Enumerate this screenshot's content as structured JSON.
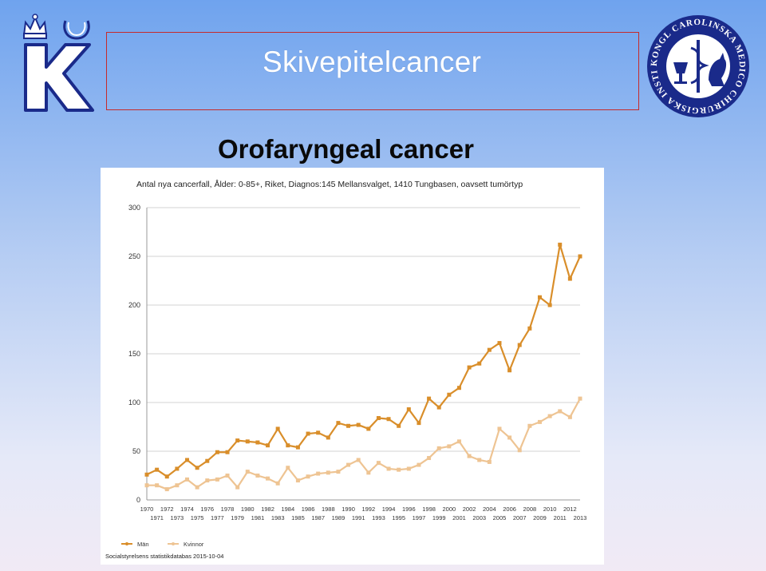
{
  "slide": {
    "title": "Skivepitelcancer",
    "subtitle": "Orofaryngeal cancer"
  },
  "colors": {
    "men": "#d98e2a",
    "women": "#eec493",
    "title_border": "#c62a2a",
    "logo_blue": "#1a2a8a"
  },
  "logos": {
    "left": "ki-crown-k-logo",
    "right_seal_text": "KONGL CAROLINSKA MEDICO CHIRURGISKA INSTITUTET"
  },
  "chart_data": {
    "type": "line",
    "title": "Antal nya cancerfall, Ålder: 0-85+, Riket, Diagnos:145 Mellansvalget, 1410 Tungbasen, oavsett tumörtyp",
    "xlabel": "",
    "ylabel": "",
    "ylim": [
      0,
      300
    ],
    "yticks": [
      "0",
      "50",
      "100",
      "150",
      "200",
      "250",
      "300"
    ],
    "xticks_top": [
      "1970",
      "1972",
      "1974",
      "1976",
      "1978",
      "1980",
      "1982",
      "1984",
      "1986",
      "1988",
      "1990",
      "1992",
      "1994",
      "1996",
      "1998",
      "2000",
      "2002",
      "2004",
      "2006",
      "2008",
      "2010",
      "2012"
    ],
    "xticks_bottom": [
      "1971",
      "1973",
      "1975",
      "1977",
      "1979",
      "1981",
      "1983",
      "1985",
      "1987",
      "1989",
      "1991",
      "1993",
      "1995",
      "1997",
      "1999",
      "2001",
      "2003",
      "2005",
      "2007",
      "2009",
      "2011",
      "2013"
    ],
    "grid": true,
    "legend_position": "bottom-left",
    "x": [
      1970,
      1971,
      1972,
      1973,
      1974,
      1975,
      1976,
      1977,
      1978,
      1979,
      1980,
      1981,
      1982,
      1983,
      1984,
      1985,
      1986,
      1987,
      1988,
      1989,
      1990,
      1991,
      1992,
      1993,
      1994,
      1995,
      1996,
      1997,
      1998,
      1999,
      2000,
      2001,
      2002,
      2003,
      2004,
      2005,
      2006,
      2007,
      2008,
      2009,
      2010,
      2011,
      2012,
      2013
    ],
    "series": [
      {
        "name": "Män",
        "values": [
          26,
          31,
          24,
          32,
          41,
          33,
          40,
          49,
          49,
          61,
          60,
          59,
          56,
          73,
          56,
          54,
          68,
          69,
          64,
          79,
          76,
          77,
          73,
          84,
          83,
          76,
          93,
          79,
          104,
          95,
          108,
          115,
          136,
          140,
          154,
          161,
          133,
          159,
          176,
          208,
          200,
          262,
          227,
          250
        ]
      },
      {
        "name": "Kvinnor",
        "values": [
          15,
          15,
          11,
          15,
          21,
          13,
          20,
          21,
          25,
          13,
          29,
          25,
          22,
          17,
          33,
          20,
          24,
          27,
          28,
          29,
          36,
          41,
          28,
          38,
          32,
          31,
          32,
          36,
          43,
          53,
          55,
          60,
          45,
          41,
          39,
          73,
          64,
          51,
          76,
          80,
          86,
          91,
          85,
          104
        ]
      }
    ],
    "source": "Socialstyrelsens statistikdatabas 2015-10-04"
  }
}
